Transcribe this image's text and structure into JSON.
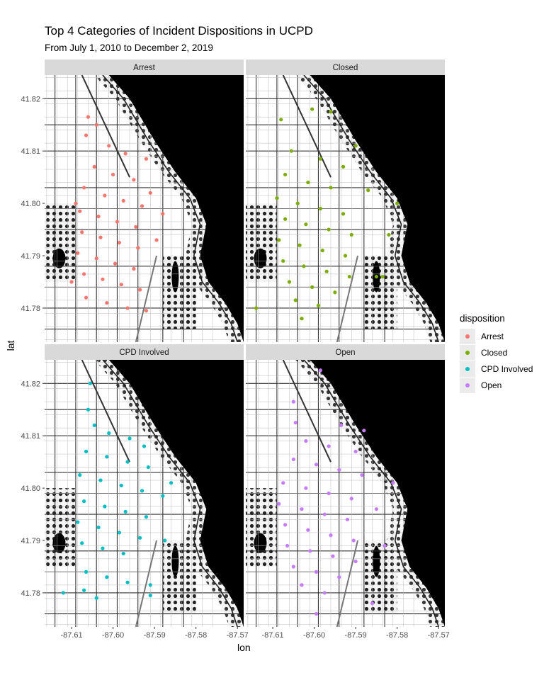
{
  "chart_data": {
    "type": "scatter",
    "title": "Top 4 Categories of Incident Dispositions in UCPD",
    "subtitle": "From July 1, 2010 to December 2, 2019",
    "xlabel": "lon",
    "ylabel": "lat",
    "xlim": [
      -87.6165,
      -87.5685
    ],
    "ylim": [
      41.7735,
      41.8245
    ],
    "x_ticks": [
      -87.61,
      -87.6,
      -87.59,
      -87.58,
      -87.57
    ],
    "x_tick_labels": [
      "-87.61",
      "-87.60",
      "-87.59",
      "-87.58",
      "-87.57"
    ],
    "y_ticks": [
      41.78,
      41.79,
      41.8,
      41.81,
      41.82
    ],
    "y_tick_labels": [
      "41.78",
      "41.79",
      "41.80",
      "41.81",
      "41.82"
    ],
    "facet_layout": "2x2",
    "basemap": "black-and-white street map",
    "legend": {
      "title": "disposition",
      "position": "right",
      "entries": [
        {
          "name": "Arrest",
          "color": "#F8766D"
        },
        {
          "name": "Closed",
          "color": "#7CAE00"
        },
        {
          "name": "CPD Involved",
          "color": "#00BFC4"
        },
        {
          "name": "Open",
          "color": "#C77CFF"
        }
      ]
    },
    "series": [
      {
        "name": "Arrest",
        "color": "#F8766D",
        "points": [
          {
            "lon": -87.606,
            "lat": 41.8165
          },
          {
            "lon": -87.604,
            "lat": 41.815
          },
          {
            "lon": -87.6065,
            "lat": 41.813
          },
          {
            "lon": -87.601,
            "lat": 41.811
          },
          {
            "lon": -87.597,
            "lat": 41.8095
          },
          {
            "lon": -87.592,
            "lat": 41.8085
          },
          {
            "lon": -87.6045,
            "lat": 41.807
          },
          {
            "lon": -87.6,
            "lat": 41.8055
          },
          {
            "lon": -87.595,
            "lat": 41.8045
          },
          {
            "lon": -87.607,
            "lat": 41.803
          },
          {
            "lon": -87.602,
            "lat": 41.8015
          },
          {
            "lon": -87.5975,
            "lat": 41.8005
          },
          {
            "lon": -87.593,
            "lat": 41.7995
          },
          {
            "lon": -87.608,
            "lat": 41.7985
          },
          {
            "lon": -87.6035,
            "lat": 41.7975
          },
          {
            "lon": -87.599,
            "lat": 41.7965
          },
          {
            "lon": -87.5945,
            "lat": 41.7955
          },
          {
            "lon": -87.6075,
            "lat": 41.7945
          },
          {
            "lon": -87.603,
            "lat": 41.7935
          },
          {
            "lon": -87.5985,
            "lat": 41.7925
          },
          {
            "lon": -87.594,
            "lat": 41.7915
          },
          {
            "lon": -87.6085,
            "lat": 41.7905
          },
          {
            "lon": -87.604,
            "lat": 41.7895
          },
          {
            "lon": -87.5995,
            "lat": 41.7885
          },
          {
            "lon": -87.595,
            "lat": 41.7875
          },
          {
            "lon": -87.607,
            "lat": 41.7865
          },
          {
            "lon": -87.6025,
            "lat": 41.7855
          },
          {
            "lon": -87.598,
            "lat": 41.7845
          },
          {
            "lon": -87.5935,
            "lat": 41.7835
          },
          {
            "lon": -87.6065,
            "lat": 41.782
          },
          {
            "lon": -87.6015,
            "lat": 41.781
          },
          {
            "lon": -87.5965,
            "lat": 41.78
          },
          {
            "lon": -87.592,
            "lat": 41.7795
          },
          {
            "lon": -87.61,
            "lat": 41.785
          },
          {
            "lon": -87.5895,
            "lat": 41.793
          },
          {
            "lon": -87.588,
            "lat": 41.798
          },
          {
            "lon": -87.591,
            "lat": 41.802
          },
          {
            "lon": -87.609,
            "lat": 41.8
          }
        ]
      },
      {
        "name": "Closed",
        "color": "#7CAE00",
        "points": [
          {
            "lon": -87.6005,
            "lat": 41.818
          },
          {
            "lon": -87.596,
            "lat": 41.8175
          },
          {
            "lon": -87.608,
            "lat": 41.816
          },
          {
            "lon": -87.59,
            "lat": 41.811
          },
          {
            "lon": -87.6055,
            "lat": 41.81
          },
          {
            "lon": -87.5985,
            "lat": 41.8085
          },
          {
            "lon": -87.593,
            "lat": 41.807
          },
          {
            "lon": -87.607,
            "lat": 41.8055
          },
          {
            "lon": -87.6015,
            "lat": 41.804
          },
          {
            "lon": -87.596,
            "lat": 41.803
          },
          {
            "lon": -87.587,
            "lat": 41.8025
          },
          {
            "lon": -87.609,
            "lat": 41.801
          },
          {
            "lon": -87.604,
            "lat": 41.8
          },
          {
            "lon": -87.5985,
            "lat": 41.799
          },
          {
            "lon": -87.593,
            "lat": 41.798
          },
          {
            "lon": -87.607,
            "lat": 41.797
          },
          {
            "lon": -87.602,
            "lat": 41.796
          },
          {
            "lon": -87.5965,
            "lat": 41.795
          },
          {
            "lon": -87.591,
            "lat": 41.794
          },
          {
            "lon": -87.6085,
            "lat": 41.793
          },
          {
            "lon": -87.6035,
            "lat": 41.792
          },
          {
            "lon": -87.598,
            "lat": 41.791
          },
          {
            "lon": -87.5925,
            "lat": 41.79
          },
          {
            "lon": -87.6075,
            "lat": 41.789
          },
          {
            "lon": -87.6025,
            "lat": 41.788
          },
          {
            "lon": -87.597,
            "lat": 41.787
          },
          {
            "lon": -87.5915,
            "lat": 41.786
          },
          {
            "lon": -87.606,
            "lat": 41.785
          },
          {
            "lon": -87.6005,
            "lat": 41.784
          },
          {
            "lon": -87.595,
            "lat": 41.783
          },
          {
            "lon": -87.6045,
            "lat": 41.7815
          },
          {
            "lon": -87.599,
            "lat": 41.7805
          },
          {
            "lon": -87.585,
            "lat": 41.786
          },
          {
            "lon": -87.582,
            "lat": 41.794
          },
          {
            "lon": -87.5835,
            "lat": 41.786
          },
          {
            "lon": -87.603,
            "lat": 41.778
          },
          {
            "lon": -87.614,
            "lat": 41.78
          },
          {
            "lon": -87.58,
            "lat": 41.8
          }
        ]
      },
      {
        "name": "CPD Involved",
        "color": "#00BFC4",
        "points": [
          {
            "lon": -87.6055,
            "lat": 41.82
          },
          {
            "lon": -87.606,
            "lat": 41.815
          },
          {
            "lon": -87.6045,
            "lat": 41.812
          },
          {
            "lon": -87.601,
            "lat": 41.8105
          },
          {
            "lon": -87.596,
            "lat": 41.8095
          },
          {
            "lon": -87.5925,
            "lat": 41.808
          },
          {
            "lon": -87.6065,
            "lat": 41.807
          },
          {
            "lon": -87.6015,
            "lat": 41.806
          },
          {
            "lon": -87.5965,
            "lat": 41.805
          },
          {
            "lon": -87.5915,
            "lat": 41.804
          },
          {
            "lon": -87.608,
            "lat": 41.8025
          },
          {
            "lon": -87.603,
            "lat": 41.8015
          },
          {
            "lon": -87.598,
            "lat": 41.8005
          },
          {
            "lon": -87.593,
            "lat": 41.7995
          },
          {
            "lon": -87.588,
            "lat": 41.7985
          },
          {
            "lon": -87.607,
            "lat": 41.7975
          },
          {
            "lon": -87.602,
            "lat": 41.7965
          },
          {
            "lon": -87.597,
            "lat": 41.7955
          },
          {
            "lon": -87.592,
            "lat": 41.7945
          },
          {
            "lon": -87.6085,
            "lat": 41.7935
          },
          {
            "lon": -87.6035,
            "lat": 41.7925
          },
          {
            "lon": -87.5985,
            "lat": 41.7915
          },
          {
            "lon": -87.5935,
            "lat": 41.7905
          },
          {
            "lon": -87.6075,
            "lat": 41.7895
          },
          {
            "lon": -87.6025,
            "lat": 41.7885
          },
          {
            "lon": -87.5975,
            "lat": 41.7875
          },
          {
            "lon": -87.6065,
            "lat": 41.784
          },
          {
            "lon": -87.6015,
            "lat": 41.783
          },
          {
            "lon": -87.5965,
            "lat": 41.782
          },
          {
            "lon": -87.591,
            "lat": 41.7815
          },
          {
            "lon": -87.607,
            "lat": 41.7805
          },
          {
            "lon": -87.612,
            "lat": 41.78
          },
          {
            "lon": -87.5875,
            "lat": 41.79
          },
          {
            "lon": -87.586,
            "lat": 41.801
          },
          {
            "lon": -87.591,
            "lat": 41.7795
          },
          {
            "lon": -87.604,
            "lat": 41.779
          }
        ]
      },
      {
        "name": "Open",
        "color": "#C77CFF",
        "points": [
          {
            "lon": -87.5985,
            "lat": 41.8225
          },
          {
            "lon": -87.605,
            "lat": 41.8165
          },
          {
            "lon": -87.6045,
            "lat": 41.8125
          },
          {
            "lon": -87.5935,
            "lat": 41.812
          },
          {
            "lon": -87.588,
            "lat": 41.811
          },
          {
            "lon": -87.602,
            "lat": 41.809
          },
          {
            "lon": -87.5965,
            "lat": 41.808
          },
          {
            "lon": -87.59,
            "lat": 41.807
          },
          {
            "lon": -87.605,
            "lat": 41.8055
          },
          {
            "lon": -87.5995,
            "lat": 41.8045
          },
          {
            "lon": -87.594,
            "lat": 41.8035
          },
          {
            "lon": -87.5885,
            "lat": 41.8025
          },
          {
            "lon": -87.6075,
            "lat": 41.801
          },
          {
            "lon": -87.602,
            "lat": 41.8
          },
          {
            "lon": -87.5965,
            "lat": 41.799
          },
          {
            "lon": -87.591,
            "lat": 41.798
          },
          {
            "lon": -87.6085,
            "lat": 41.797
          },
          {
            "lon": -87.603,
            "lat": 41.796
          },
          {
            "lon": -87.5975,
            "lat": 41.795
          },
          {
            "lon": -87.592,
            "lat": 41.794
          },
          {
            "lon": -87.607,
            "lat": 41.793
          },
          {
            "lon": -87.6015,
            "lat": 41.792
          },
          {
            "lon": -87.596,
            "lat": 41.791
          },
          {
            "lon": -87.5905,
            "lat": 41.79
          },
          {
            "lon": -87.6065,
            "lat": 41.789
          },
          {
            "lon": -87.601,
            "lat": 41.788
          },
          {
            "lon": -87.5955,
            "lat": 41.787
          },
          {
            "lon": -87.59,
            "lat": 41.786
          },
          {
            "lon": -87.605,
            "lat": 41.785
          },
          {
            "lon": -87.5995,
            "lat": 41.784
          },
          {
            "lon": -87.594,
            "lat": 41.783
          },
          {
            "lon": -87.603,
            "lat": 41.7815
          },
          {
            "lon": -87.5975,
            "lat": 41.78
          },
          {
            "lon": -87.585,
            "lat": 41.796
          },
          {
            "lon": -87.583,
            "lat": 41.789
          },
          {
            "lon": -87.581,
            "lat": 41.801
          },
          {
            "lon": -87.5995,
            "lat": 41.776
          },
          {
            "lon": -87.586,
            "lat": 41.778
          }
        ]
      }
    ]
  }
}
